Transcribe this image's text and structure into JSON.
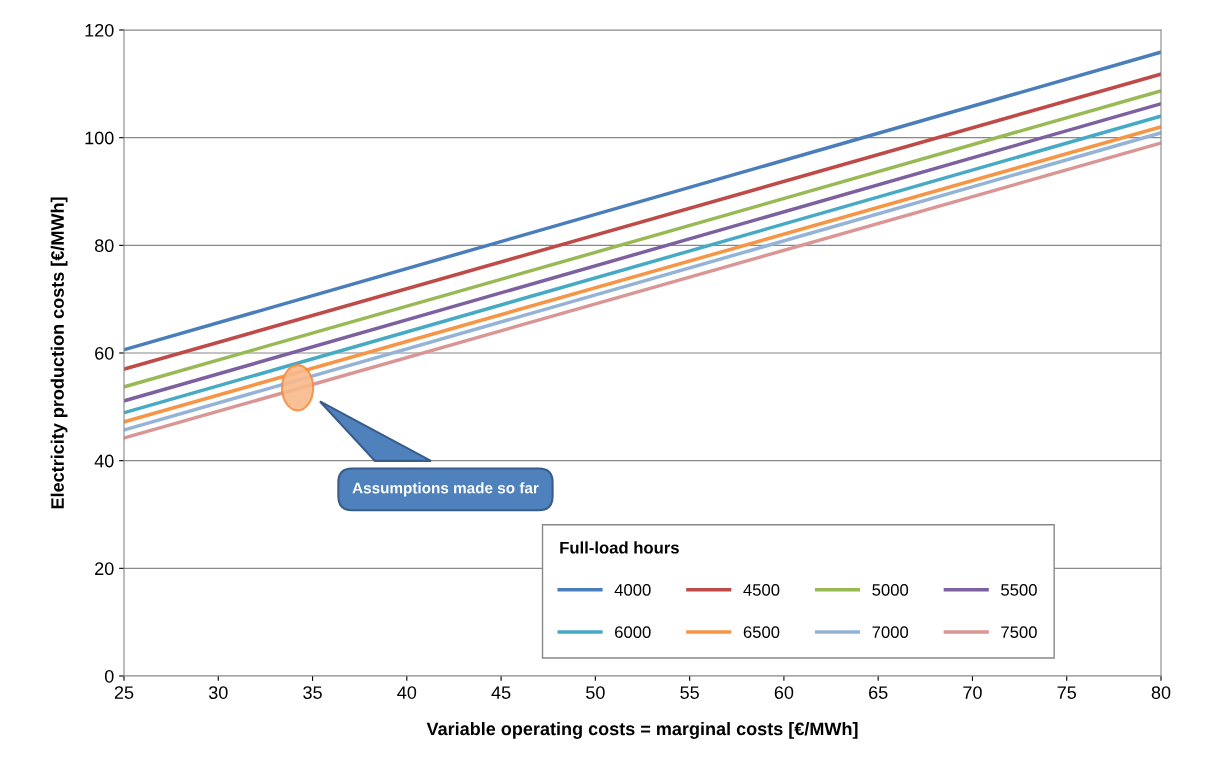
{
  "chart_data": {
    "type": "line",
    "xlabel": "Variable operating costs = marginal costs [€/MWh]",
    "ylabel": "Electricity production costs [€/MWh]",
    "legend_title": "Full-load hours",
    "x": [
      25,
      80
    ],
    "series": [
      {
        "name": "4000",
        "color": "#4a7ebb",
        "values": [
          60.6,
          115.9
        ]
      },
      {
        "name": "4500",
        "color": "#be4b48",
        "values": [
          57.0,
          111.8
        ]
      },
      {
        "name": "5000",
        "color": "#98b954",
        "values": [
          53.7,
          108.7
        ]
      },
      {
        "name": "5500",
        "color": "#7d60a0",
        "values": [
          51.1,
          106.3
        ]
      },
      {
        "name": "6000",
        "color": "#46aac5",
        "values": [
          48.9,
          104.0
        ]
      },
      {
        "name": "6500",
        "color": "#f69546",
        "values": [
          47.2,
          102.0
        ]
      },
      {
        "name": "7000",
        "color": "#95b3d7",
        "values": [
          45.7,
          100.9
        ]
      },
      {
        "name": "7500",
        "color": "#d99694",
        "values": [
          44.2,
          99.0
        ]
      }
    ],
    "xlim": [
      25,
      80
    ],
    "xticks": [
      25,
      30,
      35,
      40,
      45,
      50,
      55,
      60,
      65,
      70,
      75,
      80
    ],
    "ylim": [
      0,
      120
    ],
    "yticks": [
      0,
      20,
      40,
      60,
      80,
      100,
      120
    ],
    "grid": "y",
    "legend": "bottom right",
    "marker": "none",
    "line_style": "solid",
    "annotations": [
      "Assumptions made so far"
    ]
  }
}
